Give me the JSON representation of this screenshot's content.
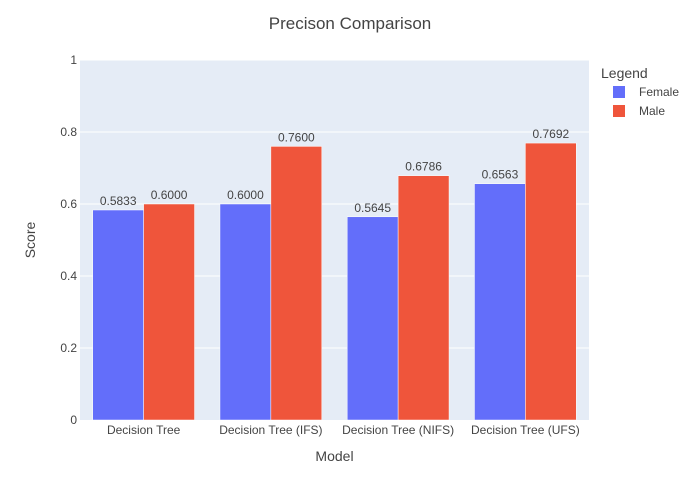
{
  "chart_data": {
    "type": "bar",
    "title": "Precison Comparison",
    "xlabel": "Model",
    "ylabel": "Score",
    "ylim": [
      0,
      1
    ],
    "yticks": [
      0,
      0.2,
      0.4,
      0.6,
      0.8,
      1
    ],
    "ytick_labels": [
      "0",
      "0.2",
      "0.4",
      "0.6",
      "0.8",
      "1"
    ],
    "categories": [
      "Decision Tree",
      "Decision Tree (IFS)",
      "Decision Tree (NIFS)",
      "Decision Tree (UFS)"
    ],
    "series": [
      {
        "name": "Female",
        "color": "#636efa",
        "values": [
          0.5833,
          0.6,
          0.5645,
          0.6563
        ],
        "labels": [
          "0.5833",
          "0.6000",
          "0.5645",
          "0.6563"
        ]
      },
      {
        "name": "Male",
        "color": "#ef553b",
        "values": [
          0.6,
          0.76,
          0.6786,
          0.7692
        ],
        "labels": [
          "0.6000",
          "0.7600",
          "0.6786",
          "0.7692"
        ]
      }
    ],
    "legend": {
      "title": "Legend",
      "placement": "top-right"
    },
    "grid": true,
    "plot_background": "#e5ecf6"
  }
}
